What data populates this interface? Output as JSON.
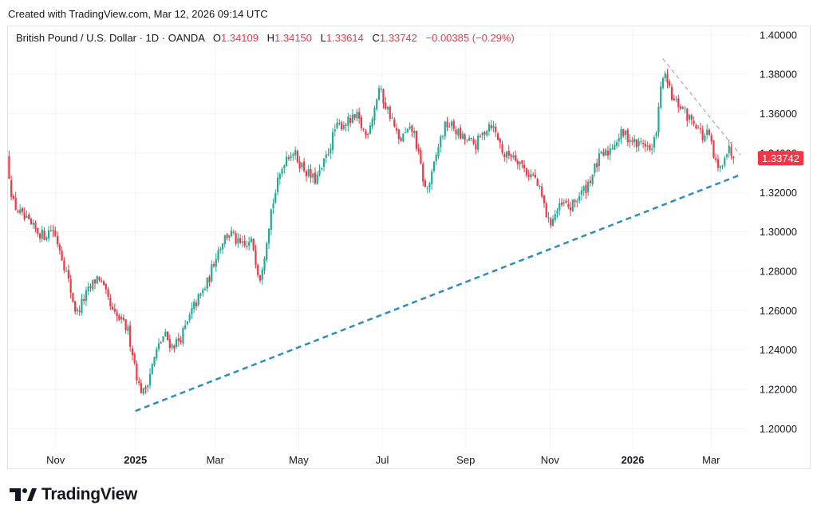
{
  "created_line": "Created with TradingView.com, Mar 12, 2026 09:14 UTC",
  "brand": "TradingView",
  "header": {
    "title": "British Pound / U.S. Dollar · 1D · OANDA",
    "open_label": "O",
    "open": "1.34109",
    "high_label": "H",
    "high": "1.34150",
    "low_label": "L",
    "low": "1.33614",
    "close_label": "C",
    "close": "1.33742",
    "change": "−0.00385 (−0.29%)"
  },
  "colors": {
    "up": "#22ab94",
    "down": "#f23645",
    "trend_support": "#2a8fbd",
    "trend_resistance": "#b39ddb",
    "grid": "#f0f3fa"
  },
  "chart_data": {
    "type": "candlestick",
    "title": "British Pound / U.S. Dollar · 1D · OANDA",
    "ylim": [
      1.19,
      1.404
    ],
    "y_ticks": [
      "1.20000",
      "1.22000",
      "1.24000",
      "1.26000",
      "1.28000",
      "1.30000",
      "1.32000",
      "1.34000",
      "1.36000",
      "1.38000",
      "1.40000"
    ],
    "x_ticks": [
      {
        "label": "Nov",
        "t": 0.065
      },
      {
        "label": "2025",
        "t": 0.174,
        "bold": true
      },
      {
        "label": "Mar",
        "t": 0.283
      },
      {
        "label": "May",
        "t": 0.397
      },
      {
        "label": "Jul",
        "t": 0.511
      },
      {
        "label": "Sep",
        "t": 0.625
      },
      {
        "label": "Nov",
        "t": 0.74
      },
      {
        "label": "2026",
        "t": 0.853,
        "bold": true
      },
      {
        "label": "Mar",
        "t": 0.96
      }
    ],
    "last_price_label": "1.33742",
    "last_price": 1.33742,
    "price_path": [
      [
        0.0,
        1.338
      ],
      [
        0.008,
        1.315
      ],
      [
        0.02,
        1.308
      ],
      [
        0.035,
        1.302
      ],
      [
        0.05,
        1.298
      ],
      [
        0.062,
        1.302
      ],
      [
        0.072,
        1.292
      ],
      [
        0.082,
        1.278
      ],
      [
        0.095,
        1.258
      ],
      [
        0.105,
        1.266
      ],
      [
        0.115,
        1.272
      ],
      [
        0.125,
        1.278
      ],
      [
        0.135,
        1.268
      ],
      [
        0.145,
        1.258
      ],
      [
        0.155,
        1.255
      ],
      [
        0.165,
        1.25
      ],
      [
        0.172,
        1.238
      ],
      [
        0.18,
        1.222
      ],
      [
        0.187,
        1.218
      ],
      [
        0.195,
        1.228
      ],
      [
        0.205,
        1.24
      ],
      [
        0.215,
        1.248
      ],
      [
        0.225,
        1.242
      ],
      [
        0.235,
        1.245
      ],
      [
        0.245,
        1.252
      ],
      [
        0.255,
        1.262
      ],
      [
        0.265,
        1.268
      ],
      [
        0.275,
        1.275
      ],
      [
        0.285,
        1.288
      ],
      [
        0.295,
        1.296
      ],
      [
        0.305,
        1.3
      ],
      [
        0.315,
        1.294
      ],
      [
        0.325,
        1.292
      ],
      [
        0.335,
        1.295
      ],
      [
        0.345,
        1.276
      ],
      [
        0.352,
        1.29
      ],
      [
        0.36,
        1.31
      ],
      [
        0.37,
        1.325
      ],
      [
        0.38,
        1.338
      ],
      [
        0.39,
        1.341
      ],
      [
        0.4,
        1.335
      ],
      [
        0.41,
        1.33
      ],
      [
        0.42,
        1.326
      ],
      [
        0.428,
        1.33
      ],
      [
        0.438,
        1.34
      ],
      [
        0.448,
        1.352
      ],
      [
        0.458,
        1.355
      ],
      [
        0.468,
        1.356
      ],
      [
        0.478,
        1.358
      ],
      [
        0.49,
        1.349
      ],
      [
        0.5,
        1.36
      ],
      [
        0.508,
        1.373
      ],
      [
        0.515,
        1.366
      ],
      [
        0.525,
        1.358
      ],
      [
        0.535,
        1.346
      ],
      [
        0.545,
        1.35
      ],
      [
        0.555,
        1.352
      ],
      [
        0.565,
        1.333
      ],
      [
        0.572,
        1.32
      ],
      [
        0.58,
        1.328
      ],
      [
        0.59,
        1.345
      ],
      [
        0.6,
        1.355
      ],
      [
        0.61,
        1.353
      ],
      [
        0.62,
        1.348
      ],
      [
        0.63,
        1.346
      ],
      [
        0.64,
        1.344
      ],
      [
        0.65,
        1.35
      ],
      [
        0.66,
        1.356
      ],
      [
        0.67,
        1.348
      ],
      [
        0.68,
        1.338
      ],
      [
        0.69,
        1.34
      ],
      [
        0.7,
        1.336
      ],
      [
        0.71,
        1.33
      ],
      [
        0.72,
        1.328
      ],
      [
        0.73,
        1.318
      ],
      [
        0.74,
        1.304
      ],
      [
        0.75,
        1.31
      ],
      [
        0.76,
        1.314
      ],
      [
        0.77,
        1.312
      ],
      [
        0.78,
        1.318
      ],
      [
        0.79,
        1.322
      ],
      [
        0.8,
        1.33
      ],
      [
        0.81,
        1.338
      ],
      [
        0.82,
        1.34
      ],
      [
        0.83,
        1.346
      ],
      [
        0.84,
        1.35
      ],
      [
        0.85,
        1.348
      ],
      [
        0.86,
        1.344
      ],
      [
        0.87,
        1.346
      ],
      [
        0.88,
        1.34
      ],
      [
        0.885,
        1.348
      ],
      [
        0.89,
        1.362
      ],
      [
        0.895,
        1.38
      ],
      [
        0.9,
        1.377
      ],
      [
        0.91,
        1.366
      ],
      [
        0.92,
        1.364
      ],
      [
        0.93,
        1.358
      ],
      [
        0.94,
        1.356
      ],
      [
        0.95,
        1.348
      ],
      [
        0.958,
        1.35
      ],
      [
        0.965,
        1.338
      ],
      [
        0.972,
        1.33
      ],
      [
        0.98,
        1.34
      ],
      [
        0.987,
        1.342
      ],
      [
        0.992,
        1.3374
      ]
    ],
    "trendlines": [
      {
        "name": "support",
        "from": [
          0.174,
          1.209
        ],
        "to": [
          1.0,
          1.329
        ],
        "style": "dashed"
      },
      {
        "name": "resistance",
        "from": [
          0.894,
          1.388
        ],
        "to": [
          1.0,
          1.339
        ],
        "style": "dashed"
      }
    ]
  }
}
